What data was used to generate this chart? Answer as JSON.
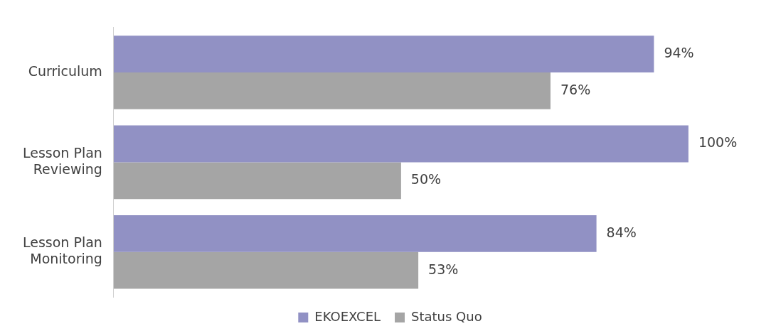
{
  "chart_data": {
    "type": "bar",
    "orientation": "horizontal",
    "legend": "bottom",
    "categories": [
      "Curriculum",
      "Lesson Plan Reviewing",
      "Lesson Plan Monitoring"
    ],
    "series": [
      {
        "name": "EKOEXCEL",
        "color": "#9191c4",
        "values": [
          94,
          100,
          84
        ],
        "value_labels": [
          "94%",
          "100%",
          "84%"
        ]
      },
      {
        "name": "Status Quo",
        "color": "#a5a5a5",
        "values": [
          76,
          50,
          53
        ],
        "value_labels": [
          "76%",
          "50%",
          "53%"
        ]
      }
    ]
  }
}
